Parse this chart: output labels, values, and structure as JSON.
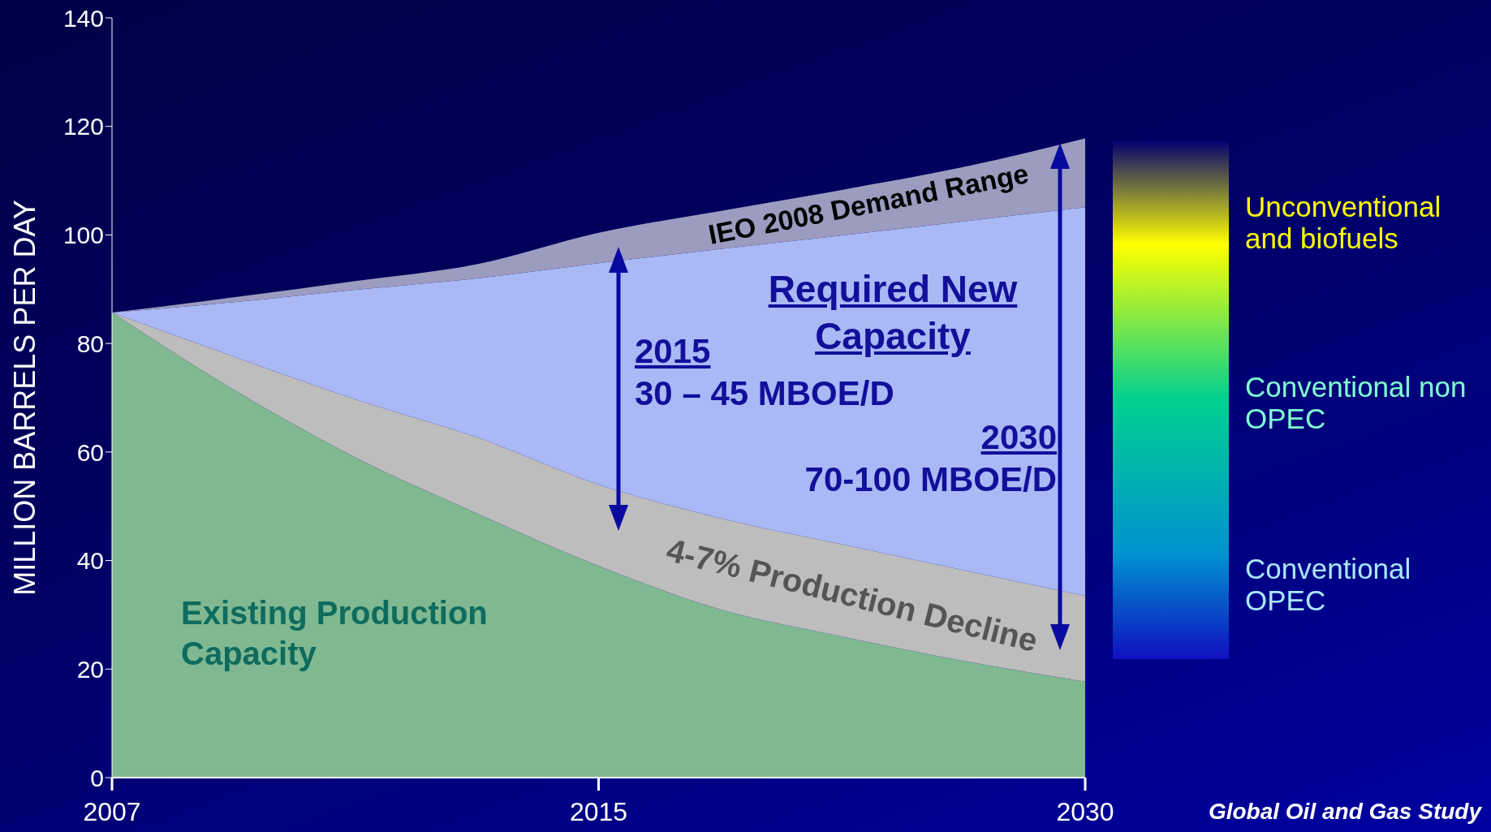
{
  "chart_data": {
    "type": "area",
    "stacked": true,
    "ylabel": "MILLION BARRELS PER DAY",
    "categories": [
      "2007",
      null,
      null,
      null,
      "2015",
      null,
      null,
      null,
      "2030"
    ],
    "ylim": [
      0,
      140
    ],
    "yticks": [
      0,
      20,
      40,
      60,
      80,
      100,
      120,
      140
    ],
    "series": [
      {
        "name": "Existing Production Capacity",
        "color": "#7fb891",
        "values": [
          85.7,
          71.5,
          59,
          48.7,
          39,
          31,
          26,
          21.5,
          17.7
        ]
      },
      {
        "name": "4-7% Production Decline",
        "color": "#bdbdbd",
        "values": [
          0,
          6.1,
          10.7,
          14,
          15,
          16.8,
          17,
          16.7,
          15.8
        ]
      },
      {
        "name": "Required New Capacity",
        "color": "#aab8f6",
        "values": [
          0,
          10,
          20.2,
          29.3,
          40.8,
          49.6,
          56.9,
          64.3,
          71.6
        ]
      },
      {
        "name": "IEO 2008 Demand Range",
        "color": "#9c9cc0",
        "values": [
          0,
          0.9,
          1.6,
          2.6,
          5.6,
          7,
          8.4,
          10,
          12.7
        ]
      }
    ],
    "annotations": [
      "2015",
      "30 – 45 MBOE/D",
      "2030",
      "70-100 MBOE/D",
      "Unconventional and biofuels",
      "Conventional non OPEC",
      "Conventional OPEC",
      "Global Oil and Gas Study"
    ]
  }
}
